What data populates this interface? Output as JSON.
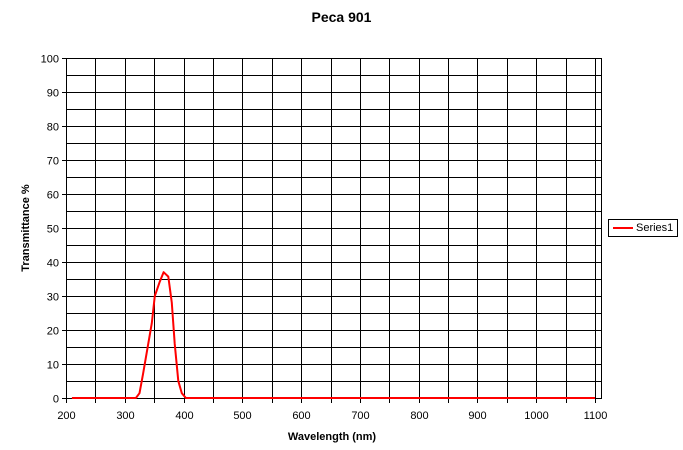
{
  "chart_data": {
    "type": "line",
    "title": "Peca 901",
    "xlabel": "Wavelength (nm)",
    "ylabel": "Transmittance %",
    "xlim": [
      200,
      1110
    ],
    "ylim": [
      0,
      100
    ],
    "x_ticks": [
      200,
      300,
      400,
      500,
      600,
      700,
      800,
      900,
      1000,
      1100
    ],
    "y_ticks": [
      0,
      10,
      20,
      30,
      40,
      50,
      60,
      70,
      80,
      90,
      100
    ],
    "x_minor_step": 50,
    "y_minor_step": 5,
    "grid": true,
    "legend_position": "right",
    "series": [
      {
        "name": "Series1",
        "color": "#ff0000",
        "x": [
          210,
          250,
          300,
          319,
          325,
          331,
          338,
          346,
          351,
          359,
          366,
          374,
          380,
          385,
          391,
          397,
          404,
          500,
          600,
          700,
          800,
          900,
          1000,
          1100
        ],
        "values": [
          0,
          0,
          0,
          0,
          1.4,
          7,
          14,
          22,
          30,
          34,
          37,
          35.7,
          28,
          16,
          5,
          1.4,
          0,
          0,
          0,
          0,
          0,
          0,
          0,
          0
        ]
      }
    ]
  },
  "legend": {
    "items": [
      {
        "label": "Series1",
        "color": "#ff0000"
      }
    ]
  }
}
